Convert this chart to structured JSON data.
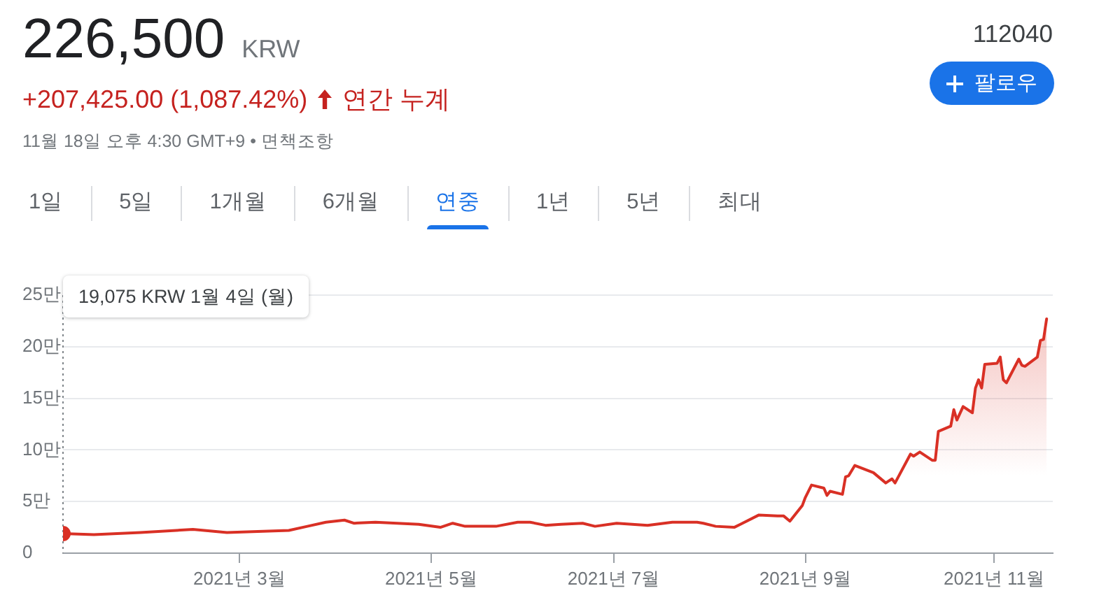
{
  "chart_data": {
    "type": "area",
    "title": "226,500",
    "annotations": [
      "KRW",
      "+207,425.00 (1,087.42%)",
      "연간 누계",
      "11월 18일 오후 4:30 GMT+9 • 면책조항",
      "112040",
      "팔로우",
      "1일",
      "5일",
      "1개월",
      "6개월",
      "연중",
      "1년",
      "5년",
      "최대",
      "19,075 KRW 1월 4일 (월)"
    ],
    "x": [
      "2021-01-04",
      "2021-01-14",
      "2021-01-29",
      "2021-02-15",
      "2021-02-26",
      "2021-03-18",
      "2021-03-24",
      "2021-03-30",
      "2021-04-05",
      "2021-04-08",
      "2021-04-15",
      "2021-04-22",
      "2021-04-29",
      "2021-05-06",
      "2021-05-10",
      "2021-05-14",
      "2021-05-24",
      "2021-05-31",
      "2021-06-04",
      "2021-06-09",
      "2021-06-14",
      "2021-06-21",
      "2021-06-25",
      "2021-07-02",
      "2021-07-12",
      "2021-07-20",
      "2021-07-28",
      "2021-07-30",
      "2021-08-03",
      "2021-08-09",
      "2021-08-11",
      "2021-08-17",
      "2021-08-23",
      "2021-08-25",
      "2021-08-27",
      "2021-08-31",
      "2021-09-01",
      "2021-09-03",
      "2021-09-07",
      "2021-09-08",
      "2021-09-09",
      "2021-09-13",
      "2021-09-14",
      "2021-09-15",
      "2021-09-17",
      "2021-09-23",
      "2021-09-27",
      "2021-09-29",
      "2021-09-30",
      "2021-10-05",
      "2021-10-06",
      "2021-10-08",
      "2021-10-12",
      "2021-10-13",
      "2021-10-14",
      "2021-10-18",
      "2021-10-19",
      "2021-10-20",
      "2021-10-22",
      "2021-10-25",
      "2021-10-26",
      "2021-10-27",
      "2021-10-28",
      "2021-10-29",
      "2021-11-02",
      "2021-11-03",
      "2021-11-04",
      "2021-11-05",
      "2021-11-09",
      "2021-11-10",
      "2021-11-11",
      "2021-11-15",
      "2021-11-16",
      "2021-11-17",
      "2021-11-18"
    ],
    "series": [
      {
        "color": "#d93025",
        "values": [
          1.9,
          1.8,
          2.0,
          2.3,
          2.0,
          2.2,
          2.6,
          3.0,
          3.2,
          2.9,
          3.0,
          2.9,
          2.8,
          2.5,
          2.9,
          2.6,
          2.6,
          3.0,
          3.0,
          2.7,
          2.8,
          2.9,
          2.6,
          2.9,
          2.7,
          3.0,
          3.0,
          2.9,
          2.6,
          2.5,
          2.8,
          3.7,
          3.6,
          3.6,
          3.1,
          4.6,
          5.4,
          6.6,
          6.3,
          5.6,
          6.0,
          5.7,
          7.4,
          7.5,
          8.5,
          7.8,
          6.8,
          7.2,
          6.8,
          9.6,
          9.4,
          9.8,
          9.0,
          9.0,
          11.8,
          12.3,
          13.9,
          12.9,
          14.2,
          13.6,
          16.0,
          16.8,
          16.0,
          18.3,
          18.4,
          19.0,
          16.8,
          16.5,
          18.8,
          18.2,
          18.1,
          19.0,
          20.6,
          20.7,
          22.7
        ]
      },
      {
        "type": "scatter",
        "x": [
          "2021-01-04"
        ],
        "color": "#d93025",
        "marker": "circle",
        "values": [
          1.9
        ]
      }
    ],
    "xlim": [
      "2021-01-04",
      "2021-11-20"
    ],
    "xticks": [
      {
        "value": "2021-03-02",
        "label": "2021년 3월"
      },
      {
        "value": "2021-05-03",
        "label": "2021년 5월"
      },
      {
        "value": "2021-07-01",
        "label": "2021년 7월"
      },
      {
        "value": "2021-09-01",
        "label": "2021년 9월"
      },
      {
        "value": "2021-11-01",
        "label": "2021년 11월"
      }
    ],
    "ylim": [
      0,
      25
    ],
    "yticks": [
      0,
      {
        "value": 5,
        "label": "5만"
      },
      {
        "value": 10,
        "label": "10만"
      },
      {
        "value": 15,
        "label": "15만"
      },
      {
        "value": 20,
        "label": "20만"
      },
      {
        "value": 25,
        "label": "25만"
      }
    ],
    "grid": "y",
    "ref_lines": [
      {
        "axis": "x",
        "value": "2021-01-04",
        "color": "#80868b",
        "line_style": "dotted"
      }
    ]
  }
}
